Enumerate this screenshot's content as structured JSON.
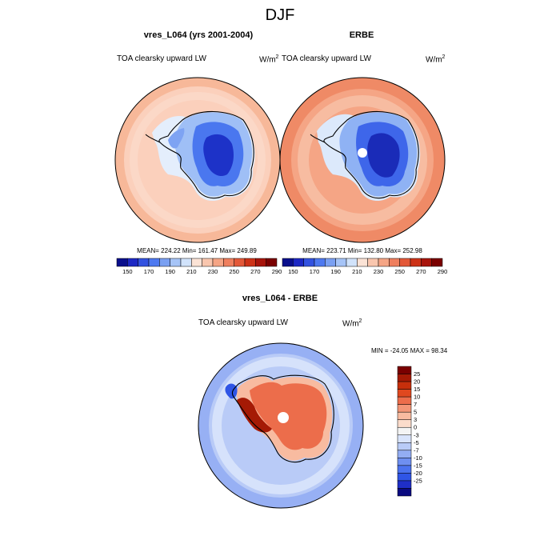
{
  "title": "DJF",
  "colors": {
    "abs_scale": [
      "#0a0f8c",
      "#1d28c4",
      "#3352e0",
      "#4e79f0",
      "#7aa0f2",
      "#a6c4f7",
      "#d1e3fb",
      "#fbe3d6",
      "#f9c6ae",
      "#f5a585",
      "#ef7f5e",
      "#e35838",
      "#cd3217",
      "#a8140b",
      "#7a0000"
    ],
    "diff_scale": [
      "#0a0a80",
      "#1f2fc7",
      "#2f55e6",
      "#4b72ee",
      "#6e8ff0",
      "#93adf3",
      "#b9cbf7",
      "#d9e4fb",
      "#f4f4f4",
      "#fbdccb",
      "#f8bba0",
      "#f39677",
      "#ec6d4b",
      "#e0481f",
      "#c72f0b",
      "#a51a05",
      "#7a0000"
    ],
    "outline": "#000000"
  },
  "panels": {
    "top_left": {
      "title": "vres_L064 (yrs 2001-2004)",
      "variable": "TOA clearsky upward LW",
      "unit_base": "W/m",
      "unit_exp": "2",
      "stats": "MEAN= 224.22  Min= 161.47  Max= 249.89"
    },
    "top_right": {
      "title": "ERBE",
      "variable": "TOA clearsky upward LW",
      "unit_base": "W/m",
      "unit_exp": "2",
      "stats": "MEAN= 223.71  Min= 132.80  Max= 252.98"
    },
    "bottom": {
      "title": "vres_L064 - ERBE",
      "variable": "TOA clearsky upward LW",
      "unit_base": "W/m",
      "unit_exp": "2",
      "stats": "MIN = -24.05 MAX =  98.34"
    }
  },
  "chart_data": [
    {
      "type": "heatmap",
      "projection": "south-polar-stereographic",
      "title": "vres_L064 (yrs 2001-2004)",
      "variable": "TOA clearsky upward LW",
      "units": "W/m^2",
      "stats": {
        "mean": 224.22,
        "min": 161.47,
        "max": 249.89
      },
      "colorbar": {
        "orientation": "horizontal",
        "levels": [
          150,
          160,
          170,
          180,
          190,
          200,
          210,
          220,
          230,
          240,
          250,
          260,
          270,
          280,
          290
        ],
        "tick_labels": [
          "150",
          "170",
          "190",
          "210",
          "230",
          "250",
          "270",
          "290"
        ]
      }
    },
    {
      "type": "heatmap",
      "projection": "south-polar-stereographic",
      "title": "ERBE",
      "variable": "TOA clearsky upward LW",
      "units": "W/m^2",
      "stats": {
        "mean": 223.71,
        "min": 132.8,
        "max": 252.98
      },
      "colorbar": {
        "orientation": "horizontal",
        "levels": [
          150,
          160,
          170,
          180,
          190,
          200,
          210,
          220,
          230,
          240,
          250,
          260,
          270,
          280,
          290
        ],
        "tick_labels": [
          "150",
          "170",
          "190",
          "210",
          "230",
          "250",
          "270",
          "290"
        ]
      }
    },
    {
      "type": "heatmap",
      "projection": "south-polar-stereographic",
      "title": "vres_L064 - ERBE",
      "variable": "TOA clearsky upward LW",
      "units": "W/m^2",
      "stats": {
        "min": -24.05,
        "max": 98.34
      },
      "colorbar": {
        "orientation": "vertical",
        "levels": [
          -25,
          -20,
          -15,
          -10,
          -7,
          -5,
          -3,
          0,
          3,
          5,
          7,
          10,
          15,
          20,
          25
        ],
        "tick_labels": [
          "25",
          "20",
          "15",
          "10",
          "7",
          "5",
          "3",
          "0",
          "-3",
          "-5",
          "-7",
          "-10",
          "-15",
          "-20",
          "-25"
        ]
      }
    }
  ]
}
